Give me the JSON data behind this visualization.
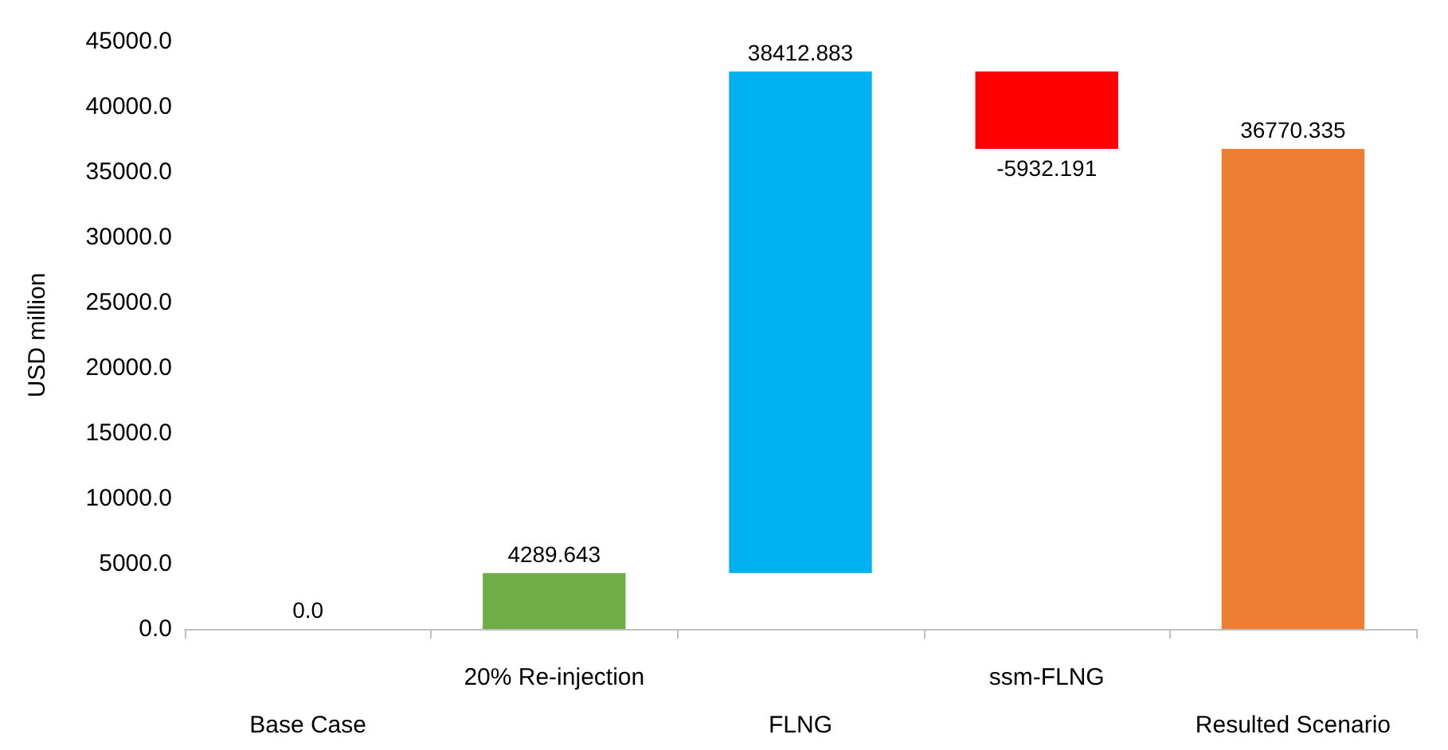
{
  "chart_data": {
    "type": "bar",
    "ylabel": "USD million",
    "categories": [
      "Base Case",
      "20% Re-injection",
      "FLNG",
      "ssm-FLNG",
      "Resulted Scenario"
    ],
    "base": [
      null,
      null,
      4289.643,
      42702.526,
      null
    ],
    "values": [
      0,
      4289.643,
      38412.883,
      -5932.191,
      36770.335
    ],
    "value_labels": [
      "0.0",
      "4289.643",
      "38412.883",
      "-5932.191",
      "36770.335"
    ],
    "colors": [
      "#4472c4",
      "#70ad47",
      "#00b0f0",
      "#ff0000",
      "#ed7d31"
    ],
    "ylim": [
      0,
      45000
    ],
    "yticks": [
      {
        "value": 0,
        "label": "0.0"
      },
      {
        "value": 5000,
        "label": "5000.0"
      },
      {
        "value": 10000,
        "label": "10000.0"
      },
      {
        "value": 15000,
        "label": "15000.0"
      },
      {
        "value": 20000,
        "label": "20000.0"
      },
      {
        "value": 25000,
        "label": "25000.0"
      },
      {
        "value": 30000,
        "label": "30000.0"
      },
      {
        "value": 35000,
        "label": "35000.0"
      },
      {
        "value": 40000,
        "label": "40000.0"
      },
      {
        "value": 45000,
        "label": "45000.0"
      }
    ],
    "grid": false
  }
}
